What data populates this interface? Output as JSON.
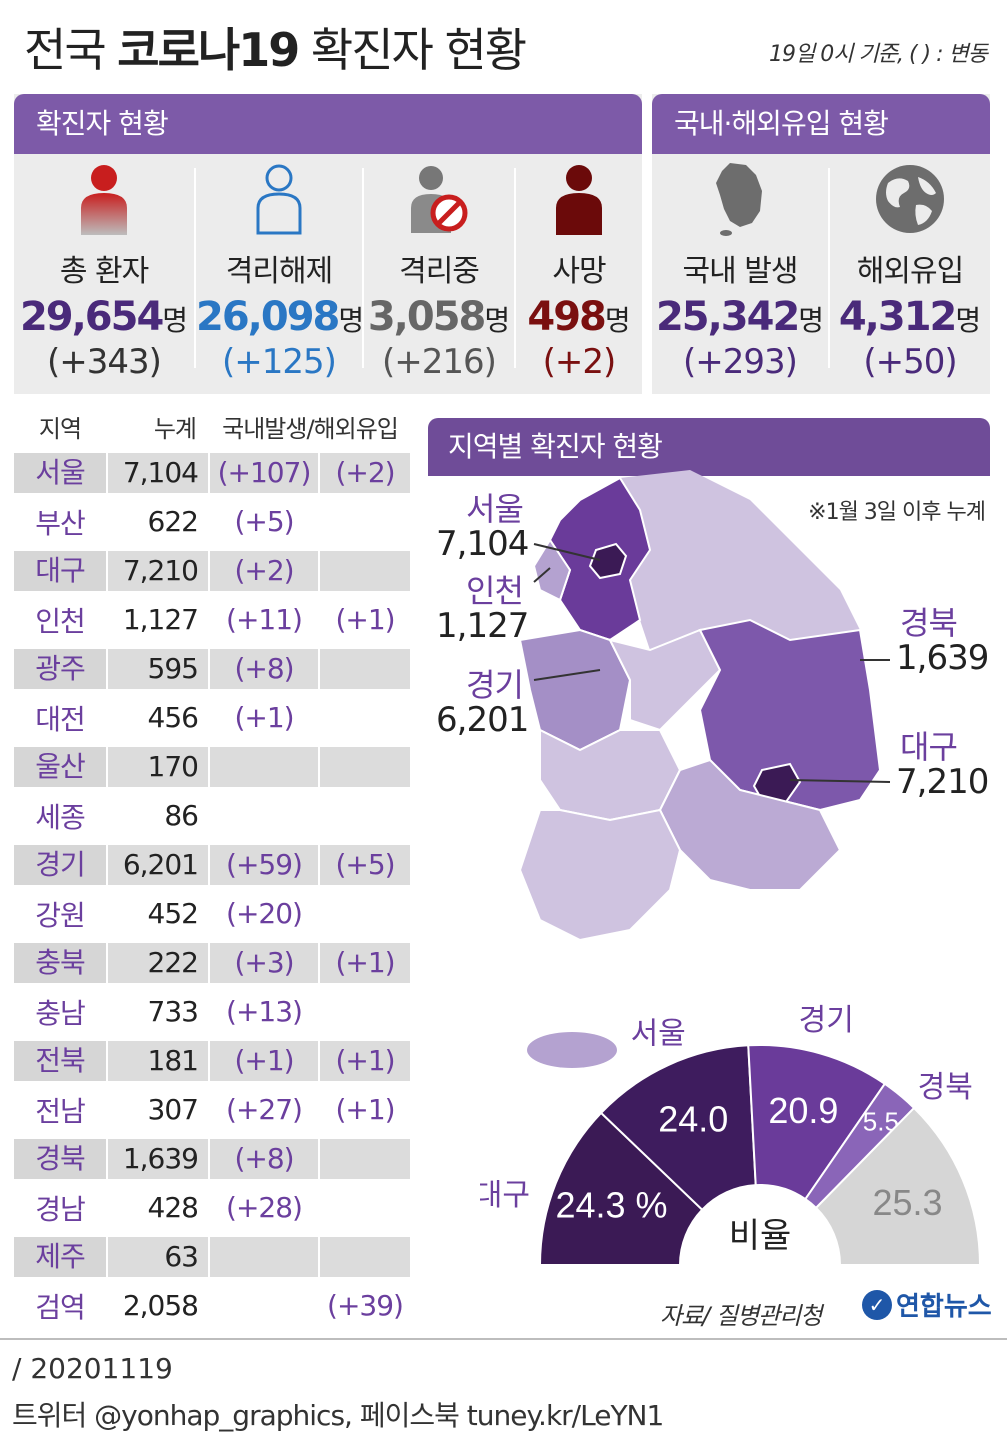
{
  "title": {
    "prefix": "전국 ",
    "bold": "코로나19",
    "suffix": " 확진자 현황"
  },
  "basis": "19일 0시 기준, ( ) : 변동",
  "cases_panel": {
    "header": "확진자 현황",
    "stats": [
      {
        "label": "총 환자",
        "value": "29,654",
        "unit": "명",
        "change": "(+343)",
        "color": "#4a2a7a",
        "change_color": "#333333",
        "icon": "person-icon"
      },
      {
        "label": "격리해제",
        "value": "26,098",
        "unit": "명",
        "change": "(+125)",
        "color": "#2a77c4",
        "change_color": "#2a77c4",
        "icon": "person-outline-icon"
      },
      {
        "label": "격리중",
        "value": "3,058",
        "unit": "명",
        "change": "(+216)",
        "color": "#666666",
        "change_color": "#555555",
        "icon": "quarantine-icon"
      },
      {
        "label": "사망",
        "value": "498",
        "unit": "명",
        "change": "(+2)",
        "color": "#7a1010",
        "change_color": "#7a1010",
        "icon": "person-dark-icon"
      }
    ]
  },
  "import_panel": {
    "header": "국내·해외유입 현황",
    "stats": [
      {
        "label": "국내 발생",
        "value": "25,342",
        "unit": "명",
        "change": "(+293)",
        "color": "#4a2a7a",
        "icon": "korea-map-icon"
      },
      {
        "label": "해외유입",
        "value": "4,312",
        "unit": "명",
        "change": "(+50)",
        "color": "#4a2a7a",
        "icon": "globe-icon"
      }
    ]
  },
  "table": {
    "headers": [
      "지역",
      "누계",
      "국내발생/해외유입"
    ],
    "rows": [
      {
        "region": "서울",
        "total": "7,104",
        "domestic": "(+107)",
        "overseas": "(+2)",
        "shade": true
      },
      {
        "region": "부산",
        "total": "622",
        "domestic": "(+5)",
        "overseas": "",
        "shade": false
      },
      {
        "region": "대구",
        "total": "7,210",
        "domestic": "(+2)",
        "overseas": "",
        "shade": true
      },
      {
        "region": "인천",
        "total": "1,127",
        "domestic": "(+11)",
        "overseas": "(+1)",
        "shade": false
      },
      {
        "region": "광주",
        "total": "595",
        "domestic": "(+8)",
        "overseas": "",
        "shade": true
      },
      {
        "region": "대전",
        "total": "456",
        "domestic": "(+1)",
        "overseas": "",
        "shade": false
      },
      {
        "region": "울산",
        "total": "170",
        "domestic": "",
        "overseas": "",
        "shade": true
      },
      {
        "region": "세종",
        "total": "86",
        "domestic": "",
        "overseas": "",
        "shade": false
      },
      {
        "region": "경기",
        "total": "6,201",
        "domestic": "(+59)",
        "overseas": "(+5)",
        "shade": true
      },
      {
        "region": "강원",
        "total": "452",
        "domestic": "(+20)",
        "overseas": "",
        "shade": false
      },
      {
        "region": "충북",
        "total": "222",
        "domestic": "(+3)",
        "overseas": "(+1)",
        "shade": true
      },
      {
        "region": "충남",
        "total": "733",
        "domestic": "(+13)",
        "overseas": "",
        "shade": false
      },
      {
        "region": "전북",
        "total": "181",
        "domestic": "(+1)",
        "overseas": "(+1)",
        "shade": true
      },
      {
        "region": "전남",
        "total": "307",
        "domestic": "(+27)",
        "overseas": "(+1)",
        "shade": false
      },
      {
        "region": "경북",
        "total": "1,639",
        "domestic": "(+8)",
        "overseas": "",
        "shade": true
      },
      {
        "region": "경남",
        "total": "428",
        "domestic": "(+28)",
        "overseas": "",
        "shade": false
      },
      {
        "region": "제주",
        "total": "63",
        "domestic": "",
        "overseas": "",
        "shade": true
      },
      {
        "region": "검역",
        "total": "2,058",
        "domestic": "",
        "overseas": "(+39)",
        "shade": false
      }
    ]
  },
  "map": {
    "header": "지역별 확진자 현황",
    "note": "※1월 3일 이후 누계",
    "callouts": [
      {
        "name": "서울",
        "value": "7,104"
      },
      {
        "name": "인천",
        "value": "1,127"
      },
      {
        "name": "경기",
        "value": "6,201"
      },
      {
        "name": "경북",
        "value": "1,639"
      },
      {
        "name": "대구",
        "value": "7,210"
      }
    ]
  },
  "chart_data": {
    "type": "pie",
    "title": "비율",
    "unit": "%",
    "slices": [
      {
        "label": "대구",
        "value": 24.3,
        "color": "#3b1a55",
        "display": "24.3"
      },
      {
        "label": "서울",
        "value": 24.0,
        "color": "#3e1c5e",
        "display": "24.0"
      },
      {
        "label": "경기",
        "value": 20.9,
        "color": "#6a3b9a",
        "display": "20.9"
      },
      {
        "label": "경북",
        "value": 5.5,
        "color": "#8a65b8",
        "display": "5.5"
      },
      {
        "label": "",
        "value": 25.3,
        "color": "#d6d6d6",
        "display": "25.3"
      }
    ]
  },
  "footer": {
    "source": "자료/ 질병관리청",
    "logo": "연합뉴스",
    "date": "/ 20201119",
    "social": "트위터 @yonhap_graphics, 페이스북 tuney.kr/LeYN1"
  }
}
